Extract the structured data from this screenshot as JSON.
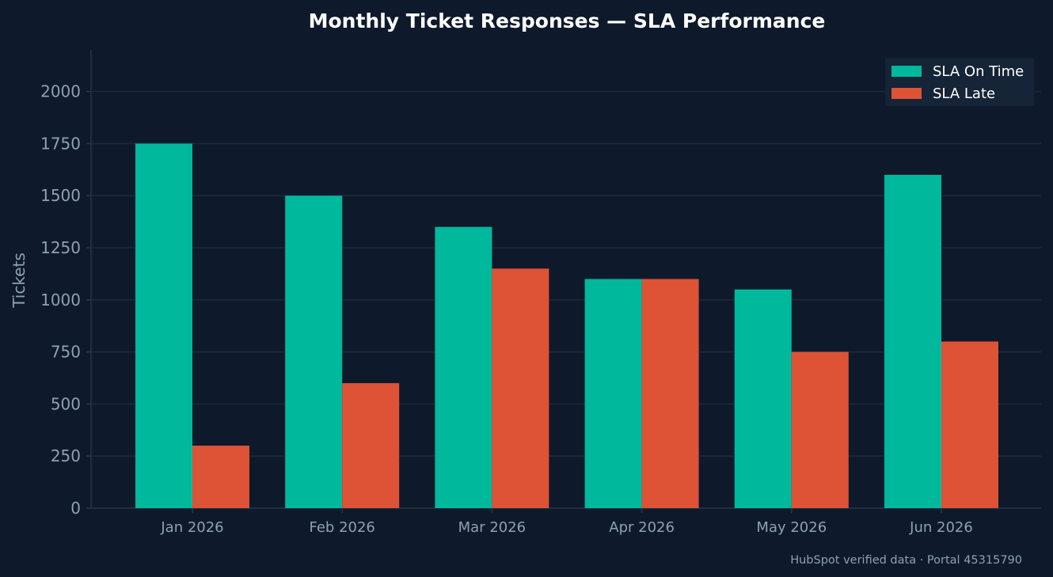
{
  "chart_data": {
    "type": "bar",
    "title": "Monthly Ticket Responses — SLA Performance",
    "xlabel": "",
    "ylabel": "Tickets",
    "categories": [
      "Jan 2026",
      "Feb 2026",
      "Mar 2026",
      "Apr 2026",
      "May 2026",
      "Jun 2026"
    ],
    "series": [
      {
        "name": "SLA On Time",
        "color": "#00b89c",
        "values": [
          1750,
          1500,
          1350,
          1100,
          1050,
          1600
        ]
      },
      {
        "name": "SLA Late",
        "color": "#de5236",
        "values": [
          300,
          600,
          1150,
          1100,
          750,
          800
        ]
      }
    ],
    "ylim": [
      0,
      2200
    ],
    "yticks": [
      0,
      250,
      500,
      750,
      1000,
      1250,
      1500,
      1750,
      2000
    ],
    "grid": true,
    "legend_position": "top-right"
  },
  "footer": {
    "text": "HubSpot verified data · Portal 45315790"
  },
  "colors": {
    "background": "#0e1a2b",
    "grid": "#1c2a3b",
    "axis": "#26364a",
    "legend_bg": "#152436"
  }
}
